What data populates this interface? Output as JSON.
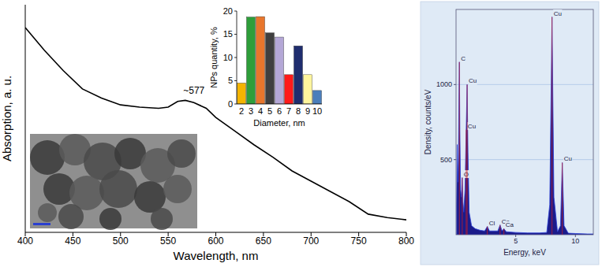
{
  "chart_data": [
    {
      "type": "line",
      "x_label": "Wavelength, nm",
      "y_label": "Absorption, a. u.",
      "x": [
        400,
        420,
        440,
        460,
        480,
        500,
        520,
        540,
        550,
        560,
        568,
        577,
        590,
        600,
        620,
        640,
        660,
        680,
        700,
        720,
        740,
        760,
        780,
        800
      ],
      "values": [
        0.9,
        0.8,
        0.71,
        0.63,
        0.59,
        0.56,
        0.55,
        0.545,
        0.55,
        0.575,
        0.58,
        0.57,
        0.545,
        0.505,
        0.445,
        0.385,
        0.33,
        0.27,
        0.225,
        0.18,
        0.135,
        0.08,
        0.065,
        0.055
      ],
      "xlim": [
        400,
        800
      ],
      "xticks": [
        400,
        450,
        500,
        550,
        600,
        650,
        700,
        750,
        800
      ],
      "ylim": [
        0,
        1
      ],
      "tick_labels": "x",
      "grid": false,
      "color": "#000000",
      "annotations": [
        {
          "text": "~577",
          "x": 577,
          "y": 0.61
        }
      ]
    },
    {
      "type": "bar",
      "x_label": "Diameter, nm",
      "y_label": "NPs quantity, %",
      "categories": [
        "2",
        "3",
        "4",
        "5",
        "6",
        "7",
        "8",
        "9",
        "10"
      ],
      "values": [
        4.5,
        18.7,
        18.8,
        15.3,
        14.4,
        6.3,
        12.5,
        6.3,
        2.9
      ],
      "colors": [
        "#f4b400",
        "#2e9e3a",
        "#e8762c",
        "#3f3f3f",
        "#b4a7d6",
        "#ff1a1a",
        "#1f2d6e",
        "#fff59d",
        "#4a7ebb"
      ],
      "ylim": [
        0,
        20
      ],
      "yticks": [
        0,
        5,
        10,
        15,
        20
      ],
      "grid": false
    },
    {
      "type": "area",
      "x_label": "Energy, keV",
      "y_label": "Density, counts/eV",
      "x": [
        0.05,
        0.1,
        0.15,
        0.2,
        0.25,
        0.28,
        0.32,
        0.38,
        0.45,
        0.52,
        0.58,
        0.65,
        0.75,
        0.85,
        0.93,
        1.0,
        1.1,
        1.3,
        1.6,
        2.0,
        2.4,
        2.62,
        2.8,
        3.2,
        3.5,
        3.69,
        3.85,
        4.01,
        4.2,
        5.0,
        6.0,
        7.0,
        7.6,
        7.85,
        8.04,
        8.2,
        8.5,
        8.75,
        8.9,
        9.05,
        9.4,
        10.0,
        11.0,
        11.5
      ],
      "values": [
        200,
        600,
        350,
        500,
        950,
        1150,
        700,
        300,
        250,
        380,
        220,
        150,
        300,
        700,
        1000,
        550,
        150,
        60,
        40,
        30,
        25,
        55,
        25,
        25,
        25,
        65,
        25,
        40,
        20,
        15,
        12,
        12,
        15,
        200,
        1450,
        250,
        20,
        60,
        480,
        60,
        10,
        8,
        5,
        5
      ],
      "xlim": [
        0,
        11.5
      ],
      "xticks": [
        5,
        10
      ],
      "ylim": [
        0,
        1500
      ],
      "yticks": [
        500,
        1000
      ],
      "grid": true,
      "color": "#1b1b8a",
      "annotations": [
        {
          "text": "C",
          "x": 0.28,
          "y": 1150
        },
        {
          "text": "O",
          "x": 0.52,
          "y": 380
        },
        {
          "text": "Cu",
          "x": 0.85,
          "y": 700
        },
        {
          "text": "Cu",
          "x": 0.93,
          "y": 1000
        },
        {
          "text": "Cl",
          "x": 2.62,
          "y": 55
        },
        {
          "text": "Ca",
          "x": 3.69,
          "y": 65
        },
        {
          "text": "Ca",
          "x": 4.01,
          "y": 40
        },
        {
          "text": "Cu",
          "x": 8.04,
          "y": 1450
        },
        {
          "text": "Cu",
          "x": 8.9,
          "y": 480
        }
      ]
    }
  ]
}
